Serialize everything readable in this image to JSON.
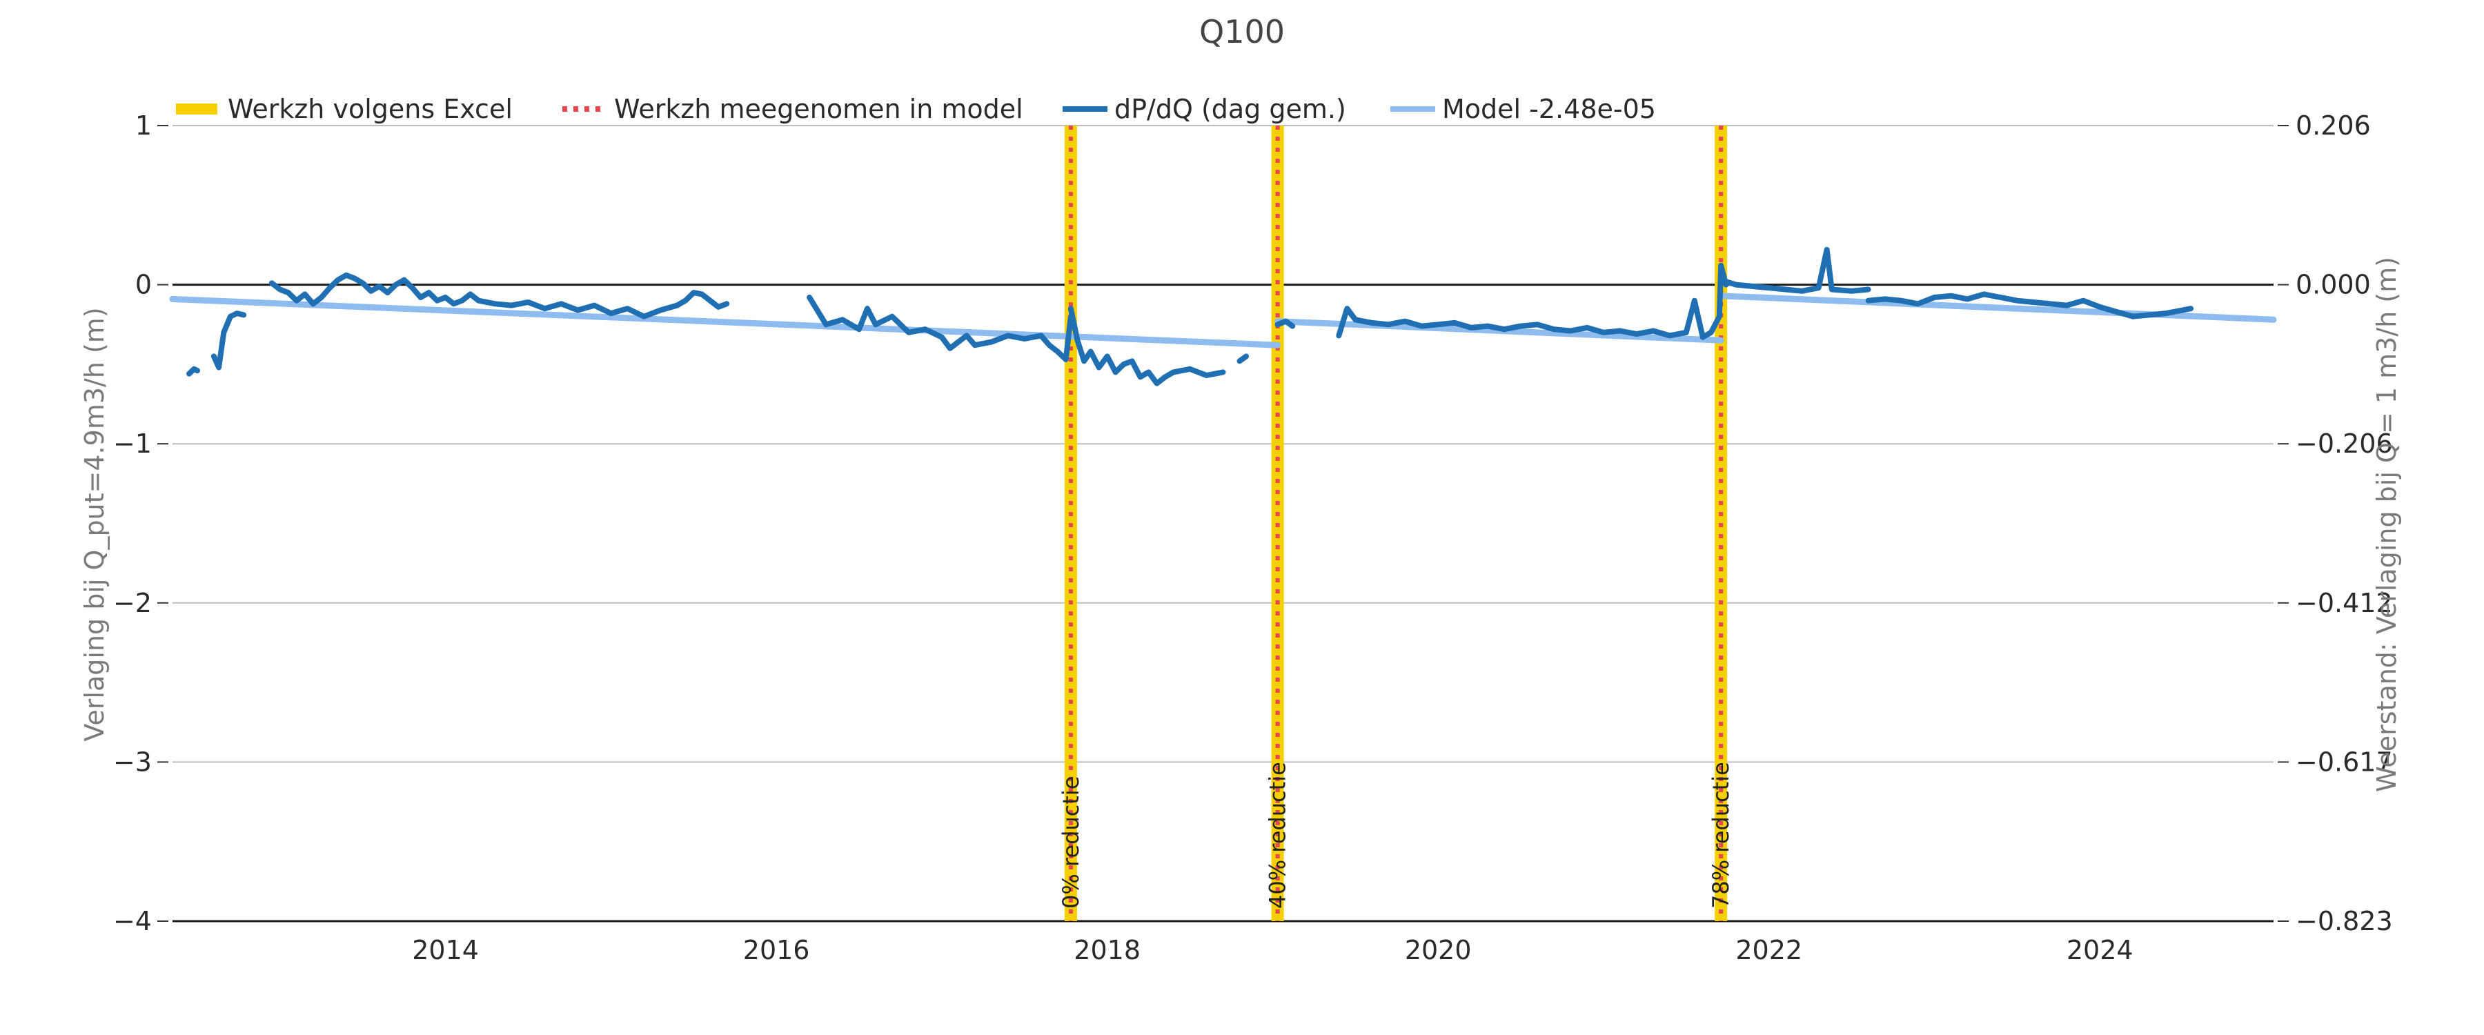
{
  "chart_data": {
    "type": "line",
    "title": "Q100",
    "ylabel": "Verlaging bij Q_put=4.9m3/h (m)",
    "y2label": "Weerstand: Verlaging bij Q = 1 m3/h (m)",
    "xlabel": "",
    "xlim": [
      2012.35,
      2025.05
    ],
    "ylim": [
      -4,
      1
    ],
    "x_ticks": [
      2014,
      2016,
      2018,
      2020,
      2022,
      2024
    ],
    "x_tick_labels": [
      "2014",
      "2016",
      "2018",
      "2020",
      "2022",
      "2024"
    ],
    "y_ticks": [
      1,
      0,
      -1,
      -2,
      -3,
      -4
    ],
    "y_tick_labels": [
      "1",
      "0",
      "−1",
      "−2",
      "−3",
      "−4"
    ],
    "y2_tick_labels": [
      "0.206",
      "0.000",
      "−0.206",
      "−0.412",
      "−0.617",
      "−0.823"
    ],
    "grid": "horizontal",
    "legend_placement": "top-left",
    "legend": [
      {
        "label": "Werkzh volgens Excel",
        "color": "#f5d000",
        "style": "thick"
      },
      {
        "label": "Werkzh meegenomen in model",
        "color": "#e8474f",
        "style": "dotted"
      },
      {
        "label": "dP/dQ (dag gem.)",
        "color": "#1f6fb2",
        "style": "solid"
      },
      {
        "label": "Model -2.48e-05",
        "color": "#8fbcee",
        "style": "solid"
      }
    ],
    "events": [
      {
        "x": 2017.78,
        "label": "0% reductie"
      },
      {
        "x": 2019.03,
        "label": "40% reductie"
      },
      {
        "x": 2021.71,
        "label": "78% reductie"
      }
    ],
    "series": [
      {
        "name": "dP/dQ (dag gem.)",
        "color": "#1f6fb2",
        "segments": [
          [
            [
              2012.45,
              -0.56
            ],
            [
              2012.48,
              -0.53
            ],
            [
              2012.5,
              -0.54
            ]
          ],
          [
            [
              2012.6,
              -0.45
            ],
            [
              2012.63,
              -0.52
            ],
            [
              2012.66,
              -0.3
            ],
            [
              2012.7,
              -0.2
            ],
            [
              2012.74,
              -0.18
            ],
            [
              2012.78,
              -0.19
            ]
          ],
          [
            [
              2012.95,
              0.01
            ],
            [
              2013.0,
              -0.03
            ],
            [
              2013.05,
              -0.05
            ],
            [
              2013.1,
              -0.1
            ],
            [
              2013.15,
              -0.06
            ],
            [
              2013.2,
              -0.12
            ],
            [
              2013.25,
              -0.08
            ],
            [
              2013.3,
              -0.02
            ],
            [
              2013.35,
              0.03
            ],
            [
              2013.4,
              0.06
            ],
            [
              2013.45,
              0.04
            ],
            [
              2013.5,
              0.01
            ],
            [
              2013.55,
              -0.04
            ],
            [
              2013.6,
              -0.01
            ],
            [
              2013.65,
              -0.05
            ],
            [
              2013.7,
              0.0
            ],
            [
              2013.75,
              0.03
            ],
            [
              2013.8,
              -0.02
            ],
            [
              2013.85,
              -0.08
            ],
            [
              2013.9,
              -0.05
            ],
            [
              2013.95,
              -0.1
            ],
            [
              2014.0,
              -0.08
            ],
            [
              2014.05,
              -0.12
            ],
            [
              2014.1,
              -0.1
            ],
            [
              2014.15,
              -0.06
            ],
            [
              2014.2,
              -0.1
            ],
            [
              2014.3,
              -0.12
            ],
            [
              2014.4,
              -0.13
            ],
            [
              2014.5,
              -0.11
            ],
            [
              2014.6,
              -0.15
            ],
            [
              2014.7,
              -0.12
            ],
            [
              2014.8,
              -0.16
            ],
            [
              2014.9,
              -0.13
            ],
            [
              2015.0,
              -0.18
            ],
            [
              2015.1,
              -0.15
            ],
            [
              2015.2,
              -0.2
            ],
            [
              2015.3,
              -0.16
            ],
            [
              2015.4,
              -0.13
            ],
            [
              2015.45,
              -0.1
            ],
            [
              2015.5,
              -0.05
            ],
            [
              2015.55,
              -0.06
            ],
            [
              2015.6,
              -0.1
            ],
            [
              2015.65,
              -0.14
            ],
            [
              2015.7,
              -0.12
            ]
          ],
          [
            [
              2016.2,
              -0.08
            ],
            [
              2016.3,
              -0.25
            ],
            [
              2016.4,
              -0.22
            ],
            [
              2016.5,
              -0.28
            ],
            [
              2016.55,
              -0.15
            ],
            [
              2016.6,
              -0.25
            ],
            [
              2016.7,
              -0.2
            ],
            [
              2016.8,
              -0.3
            ],
            [
              2016.9,
              -0.28
            ],
            [
              2017.0,
              -0.33
            ],
            [
              2017.05,
              -0.4
            ],
            [
              2017.1,
              -0.36
            ],
            [
              2017.15,
              -0.32
            ],
            [
              2017.2,
              -0.38
            ],
            [
              2017.3,
              -0.36
            ],
            [
              2017.4,
              -0.32
            ],
            [
              2017.5,
              -0.34
            ],
            [
              2017.6,
              -0.32
            ],
            [
              2017.65,
              -0.38
            ],
            [
              2017.7,
              -0.42
            ],
            [
              2017.75,
              -0.47
            ],
            [
              2017.78,
              -0.2
            ]
          ],
          [
            [
              2017.78,
              -0.15
            ],
            [
              2017.82,
              -0.35
            ],
            [
              2017.86,
              -0.48
            ],
            [
              2017.9,
              -0.42
            ],
            [
              2017.95,
              -0.52
            ],
            [
              2018.0,
              -0.45
            ],
            [
              2018.05,
              -0.55
            ],
            [
              2018.1,
              -0.5
            ],
            [
              2018.15,
              -0.48
            ],
            [
              2018.2,
              -0.58
            ],
            [
              2018.25,
              -0.55
            ],
            [
              2018.3,
              -0.62
            ],
            [
              2018.35,
              -0.58
            ],
            [
              2018.4,
              -0.55
            ],
            [
              2018.5,
              -0.53
            ],
            [
              2018.6,
              -0.57
            ],
            [
              2018.7,
              -0.55
            ]
          ],
          [
            [
              2018.8,
              -0.48
            ],
            [
              2018.84,
              -0.45
            ]
          ],
          [
            [
              2019.03,
              -0.25
            ],
            [
              2019.08,
              -0.23
            ],
            [
              2019.12,
              -0.26
            ]
          ],
          [
            [
              2019.4,
              -0.32
            ],
            [
              2019.45,
              -0.15
            ],
            [
              2019.5,
              -0.22
            ],
            [
              2019.6,
              -0.24
            ],
            [
              2019.7,
              -0.25
            ],
            [
              2019.8,
              -0.23
            ],
            [
              2019.9,
              -0.26
            ],
            [
              2020.0,
              -0.25
            ],
            [
              2020.1,
              -0.24
            ],
            [
              2020.2,
              -0.27
            ],
            [
              2020.3,
              -0.26
            ],
            [
              2020.4,
              -0.28
            ],
            [
              2020.5,
              -0.26
            ],
            [
              2020.6,
              -0.25
            ],
            [
              2020.7,
              -0.28
            ],
            [
              2020.8,
              -0.29
            ],
            [
              2020.9,
              -0.27
            ],
            [
              2021.0,
              -0.3
            ],
            [
              2021.1,
              -0.29
            ],
            [
              2021.2,
              -0.31
            ],
            [
              2021.3,
              -0.29
            ],
            [
              2021.4,
              -0.32
            ],
            [
              2021.5,
              -0.3
            ],
            [
              2021.55,
              -0.1
            ],
            [
              2021.6,
              -0.33
            ],
            [
              2021.65,
              -0.3
            ],
            [
              2021.7,
              -0.2
            ],
            [
              2021.71,
              0.12
            ],
            [
              2021.74,
              -0.0
            ]
          ],
          [
            [
              2021.74,
              0.02
            ],
            [
              2021.8,
              0.0
            ],
            [
              2021.9,
              -0.01
            ],
            [
              2022.0,
              -0.02
            ],
            [
              2022.1,
              -0.03
            ],
            [
              2022.2,
              -0.04
            ],
            [
              2022.3,
              -0.02
            ],
            [
              2022.35,
              0.22
            ],
            [
              2022.38,
              -0.03
            ],
            [
              2022.5,
              -0.04
            ],
            [
              2022.6,
              -0.03
            ]
          ],
          [
            [
              2022.6,
              -0.1
            ],
            [
              2022.7,
              -0.09
            ],
            [
              2022.8,
              -0.1
            ],
            [
              2022.9,
              -0.12
            ],
            [
              2023.0,
              -0.08
            ],
            [
              2023.1,
              -0.07
            ],
            [
              2023.2,
              -0.09
            ],
            [
              2023.3,
              -0.06
            ],
            [
              2023.4,
              -0.08
            ],
            [
              2023.5,
              -0.1
            ],
            [
              2023.6,
              -0.11
            ],
            [
              2023.7,
              -0.12
            ],
            [
              2023.8,
              -0.13
            ],
            [
              2023.9,
              -0.1
            ],
            [
              2024.0,
              -0.14
            ],
            [
              2024.1,
              -0.17
            ],
            [
              2024.2,
              -0.2
            ],
            [
              2024.3,
              -0.19
            ],
            [
              2024.4,
              -0.18
            ],
            [
              2024.5,
              -0.16
            ],
            [
              2024.55,
              -0.15
            ]
          ]
        ]
      },
      {
        "name": "Model -2.48e-05",
        "color": "#8fbcee",
        "segments": [
          [
            [
              2012.35,
              -0.09
            ],
            [
              2019.03,
              -0.38
            ]
          ],
          [
            [
              2019.03,
              -0.23
            ],
            [
              2021.71,
              -0.35
            ]
          ],
          [
            [
              2021.71,
              -0.07
            ],
            [
              2025.05,
              -0.22
            ]
          ]
        ]
      }
    ]
  }
}
